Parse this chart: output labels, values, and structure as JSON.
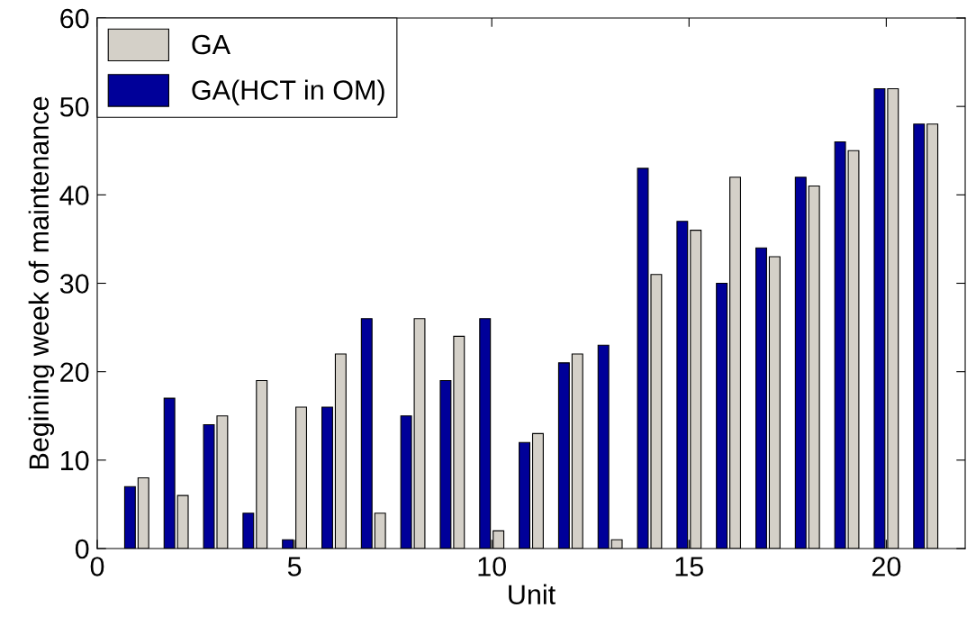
{
  "chart_data": {
    "type": "bar",
    "xlabel": "Unit",
    "ylabel": "Begining week of maintenance",
    "x": [
      1,
      2,
      3,
      4,
      5,
      6,
      7,
      8,
      9,
      10,
      11,
      12,
      13,
      14,
      15,
      16,
      17,
      18,
      19,
      20,
      21
    ],
    "series": [
      {
        "name": "GA(HCT in OM)",
        "color": "#000099",
        "values": [
          7,
          17,
          14,
          4,
          1,
          16,
          26,
          15,
          19,
          26,
          12,
          21,
          23,
          43,
          37,
          30,
          34,
          42,
          46,
          52,
          48
        ]
      },
      {
        "name": "GA",
        "color": "#d4d0c8",
        "values": [
          8,
          6,
          15,
          19,
          16,
          22,
          4,
          26,
          24,
          2,
          13,
          22,
          1,
          31,
          36,
          42,
          33,
          41,
          45,
          52,
          48
        ]
      }
    ],
    "xlim": [
      0,
      22
    ],
    "xticks": [
      0,
      5,
      10,
      15,
      20
    ],
    "ylim": [
      0,
      60
    ],
    "yticks": [
      0,
      10,
      20,
      30,
      40,
      50,
      60
    ],
    "grid": false,
    "legend": "top left"
  }
}
